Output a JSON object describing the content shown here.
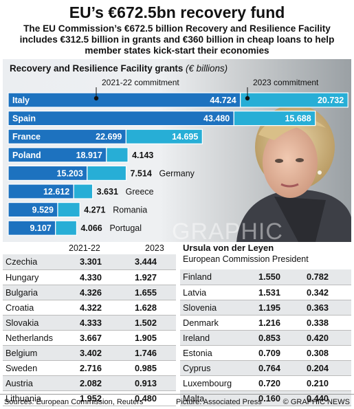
{
  "title": "EU’s €672.5bn recovery fund",
  "subtitle": "The EU Commission’s €672.5 billion Recovery and Resilience Facility includes €312.5 billion in grants and €360 billion in cheap loans to help member states kick-start their economies",
  "chart_heading": "Recovery and Resilience Facility grants",
  "chart_unit": "(€ billions)",
  "watermark": "GRAPHIC NEWS",
  "colors": {
    "commit_2021_22": "#1d72bf",
    "commit_2023": "#27aed6"
  },
  "chart_data": {
    "type": "bar",
    "orientation": "horizontal",
    "stacked": true,
    "title": "Recovery and Resilience Facility grants",
    "unit": "(€ billions)",
    "categories": [
      "Italy",
      "Spain",
      "France",
      "Poland",
      "Germany",
      "Greece",
      "Romania",
      "Portugal"
    ],
    "series": [
      {
        "name": "2021-22 commitment",
        "values": [
          44.724,
          43.48,
          22.699,
          18.917,
          15.203,
          12.612,
          9.529,
          9.107
        ]
      },
      {
        "name": "2023 commitment",
        "values": [
          20.732,
          15.688,
          14.695,
          4.143,
          7.514,
          3.631,
          4.271,
          4.066
        ]
      }
    ],
    "value_labels": [
      [
        "44.724",
        "20.732"
      ],
      [
        "43.480",
        "15.688"
      ],
      [
        "22.699",
        "14.695"
      ],
      [
        "18.917",
        "4.143"
      ],
      [
        "15.203",
        "7.514"
      ],
      [
        "12.612",
        "3.631"
      ],
      [
        "9.529",
        "4.271"
      ],
      [
        "9.107",
        "4.066"
      ]
    ],
    "label_inside": [
      true,
      true,
      true,
      true,
      false,
      false,
      false,
      false
    ]
  },
  "table": {
    "col_2021": "2021-22",
    "col_2023": "2023",
    "left_rows": [
      [
        "Czechia",
        "3.301",
        "3.444"
      ],
      [
        "Hungary",
        "4.330",
        "1.927"
      ],
      [
        "Bulgaria",
        "4.326",
        "1.655"
      ],
      [
        "Croatia",
        "4.322",
        "1.628"
      ],
      [
        "Slovakia",
        "4.333",
        "1.502"
      ],
      [
        "Netherlands",
        "3.667",
        "1.905"
      ],
      [
        "Belgium",
        "3.402",
        "1.746"
      ],
      [
        "Sweden",
        "2.716",
        "0.985"
      ],
      [
        "Austria",
        "2.082",
        "0.913"
      ],
      [
        "Lithuania",
        "1.952",
        "0.480"
      ]
    ],
    "right_rows": [
      [
        "Finland",
        "1.550",
        "0.782"
      ],
      [
        "Latvia",
        "1.531",
        "0.342"
      ],
      [
        "Slovenia",
        "1.195",
        "0.363"
      ],
      [
        "Denmark",
        "1.216",
        "0.338"
      ],
      [
        "Ireland",
        "0.853",
        "0.420"
      ],
      [
        "Estonia",
        "0.709",
        "0.308"
      ],
      [
        "Cyprus",
        "0.764",
        "0.204"
      ],
      [
        "Luxembourg",
        "0.720",
        "0.210"
      ],
      [
        "Malta",
        "0.160",
        "0.440"
      ]
    ]
  },
  "person": {
    "name": "Ursula von der Leyen",
    "role": "European Commission President"
  },
  "footer": {
    "sources": "Sources: European Commission, Reuters",
    "picture": "Picture: Associated Press",
    "credit": "© GRAPHIC NEWS"
  }
}
